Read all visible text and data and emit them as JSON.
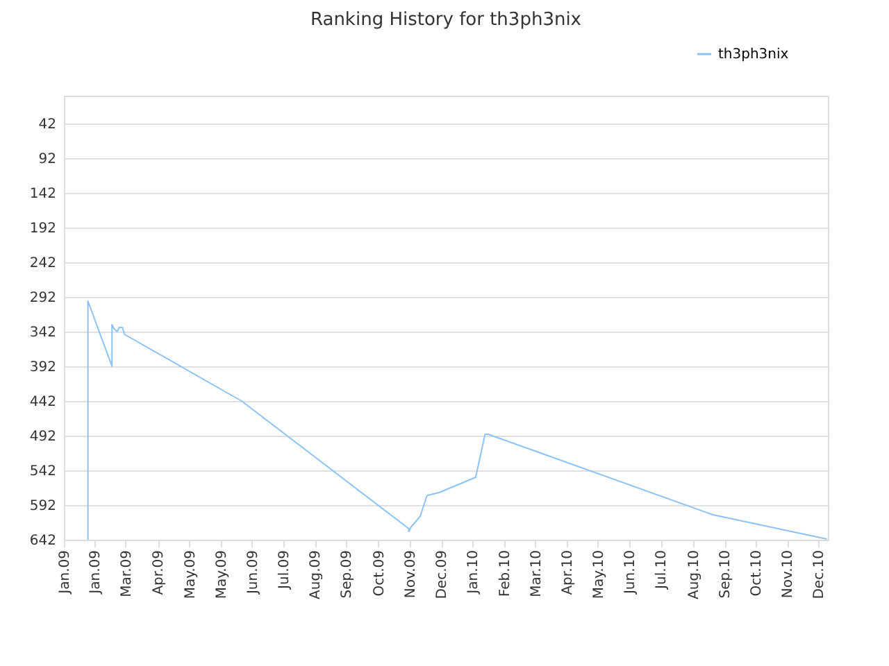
{
  "chart_data": {
    "type": "line",
    "title": "Ranking History for th3ph3nix",
    "x": [
      "2009-01-24",
      "2009-01-24",
      "2009-02-16",
      "2009-02-16",
      "2009-02-18",
      "2009-02-21",
      "2009-02-23",
      "2009-02-26",
      "2009-02-28",
      "2009-06-20",
      "2009-11-27",
      "2009-11-27",
      "2009-11-29",
      "2009-12-08",
      "2009-12-14",
      "2009-12-15",
      "2009-12-26",
      "2010-01-30",
      "2010-02-08",
      "2010-02-11",
      "2010-09-14",
      "2011-01-01"
    ],
    "series": [
      {
        "name": "th3ph3nix",
        "color": "#8cc2f5",
        "values": [
          642,
          298,
          392,
          332,
          338,
          342,
          336,
          336,
          346,
          442,
          626,
          630,
          624,
          608,
          580,
          578,
          574,
          552,
          490,
          490,
          606,
          641
        ]
      }
    ],
    "xlim": [
      "2009-01-01",
      "2011-01-02"
    ],
    "xticks": [
      {
        "value": "2009-01-01",
        "label": "Jan.09"
      },
      {
        "value": "2009-01-30",
        "label": "Jan.09"
      },
      {
        "value": "2009-03-01",
        "label": "Mar.09"
      },
      {
        "value": "2009-04-01",
        "label": "Apr.09"
      },
      {
        "value": "2009-05-01",
        "label": "May.09"
      },
      {
        "value": "2009-05-31",
        "label": "May.09"
      },
      {
        "value": "2009-06-30",
        "label": "Jun.09"
      },
      {
        "value": "2009-07-30",
        "label": "Jul.09"
      },
      {
        "value": "2009-08-29",
        "label": "Aug.09"
      },
      {
        "value": "2009-09-28",
        "label": "Sep.09"
      },
      {
        "value": "2009-10-29",
        "label": "Oct.09"
      },
      {
        "value": "2009-11-28",
        "label": "Nov.09"
      },
      {
        "value": "2009-12-28",
        "label": "Dec.09"
      },
      {
        "value": "2010-01-27",
        "label": "Jan.10"
      },
      {
        "value": "2010-02-26",
        "label": "Feb.10"
      },
      {
        "value": "2010-03-28",
        "label": "Mar.10"
      },
      {
        "value": "2010-04-27",
        "label": "Apr.10"
      },
      {
        "value": "2010-05-27",
        "label": "May.10"
      },
      {
        "value": "2010-06-26",
        "label": "Jun.10"
      },
      {
        "value": "2010-07-26",
        "label": "Jul.10"
      },
      {
        "value": "2010-08-26",
        "label": "Aug.10"
      },
      {
        "value": "2010-09-25",
        "label": "Sep.10"
      },
      {
        "value": "2010-10-25",
        "label": "Oct.10"
      },
      {
        "value": "2010-11-24",
        "label": "Nov.10"
      },
      {
        "value": "2010-12-24",
        "label": "Dec.10"
      }
    ],
    "ylim": [
      642,
      2
    ],
    "yticks": [
      42,
      92,
      142,
      192,
      242,
      292,
      342,
      392,
      442,
      492,
      542,
      592,
      642
    ],
    "grid": "y",
    "legend": "top right",
    "marker": "none",
    "line_style": "solid"
  }
}
